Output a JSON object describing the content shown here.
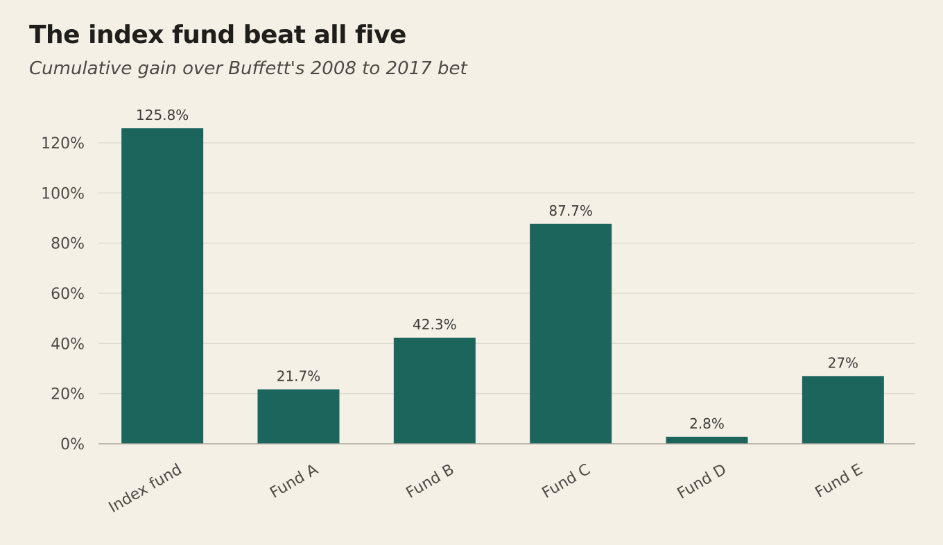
{
  "chart_data": {
    "type": "bar",
    "title": "The index fund beat all five",
    "subtitle": "Cumulative gain over Buffett's 2008 to 2017 bet",
    "categories": [
      "Index fund",
      "Fund A",
      "Fund B",
      "Fund C",
      "Fund D",
      "Fund E"
    ],
    "values": [
      125.8,
      21.7,
      42.3,
      87.7,
      2.8,
      27
    ],
    "data_labels": [
      "125.8%",
      "21.7%",
      "42.3%",
      "87.7%",
      "2.8%",
      "27%"
    ],
    "yticks": [
      0,
      20,
      40,
      60,
      80,
      100,
      120
    ],
    "ytick_labels": [
      "0%",
      "20%",
      "40%",
      "60%",
      "80%",
      "100%",
      "120%"
    ],
    "ylim": [
      0,
      130
    ],
    "xlabel": "",
    "ylabel": "",
    "grid": true,
    "colors": {
      "bar": "#1b655d",
      "background": "#f4f0e6",
      "grid": "#dedbd2",
      "axis": "#a8a59c"
    }
  }
}
